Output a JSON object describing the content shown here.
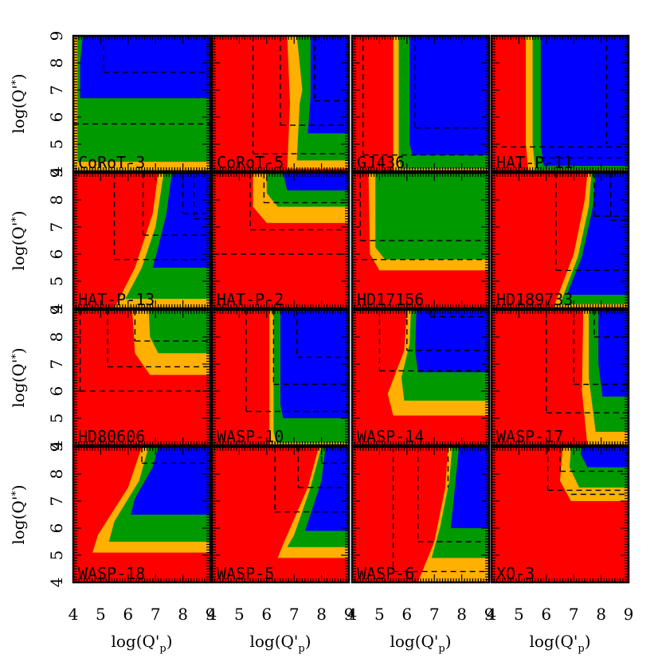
{
  "colors": {
    "red": "#ff0000",
    "orange": "#ffb000",
    "green": "#009900",
    "blue": "#0000ff",
    "frame": "#000000",
    "dash": "#000000"
  },
  "chart_data": {
    "type": "heatmap",
    "layout": "4x4 grid of panels",
    "xlabel": "log(Q'p)",
    "xlabel_main": "log(Q'",
    "xlabel_sub": "p",
    "xlabel_close": ")",
    "ylabel": "log(Q'*)",
    "ylabel_main": "log(Q'",
    "ylabel_sub": "*",
    "ylabel_close": ")",
    "xlim": [
      4,
      9
    ],
    "ylim": [
      4,
      9
    ],
    "xticks": [
      "4",
      "5",
      "6",
      "7",
      "8",
      "9"
    ],
    "yticks": [
      "4",
      "5",
      "6",
      "7",
      "8",
      "9"
    ],
    "color_order": [
      "red",
      "orange",
      "green",
      "blue"
    ],
    "panels": [
      {
        "name": "CoRoT-3"
      },
      {
        "name": "CoRoT-5"
      },
      {
        "name": "GJ436"
      },
      {
        "name": "HAT-P-11"
      },
      {
        "name": "HAT-P-13"
      },
      {
        "name": "HAT-P-2"
      },
      {
        "name": "HD17156"
      },
      {
        "name": "HD189733"
      },
      {
        "name": "HD80606"
      },
      {
        "name": "WASP-10"
      },
      {
        "name": "WASP-14"
      },
      {
        "name": "WASP-17"
      },
      {
        "name": "WASP-18"
      },
      {
        "name": "WASP-5"
      },
      {
        "name": "WASP-6"
      },
      {
        "name": "XO-3"
      }
    ]
  }
}
